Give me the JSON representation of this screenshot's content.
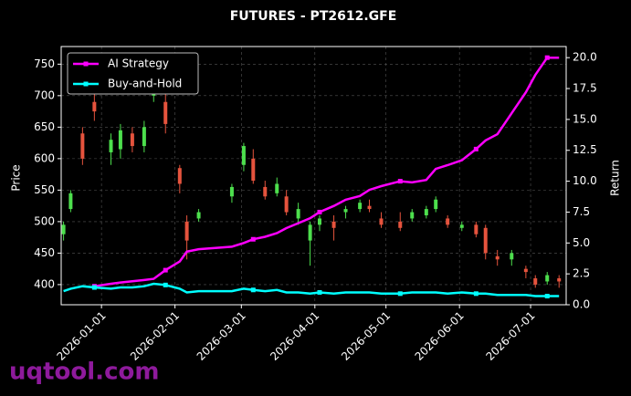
{
  "chart_data": {
    "type": "candlestick",
    "title": "FUTURES - PT2612.GFE",
    "watermark": "uqtool.com",
    "ylabel": "Price",
    "y2label": "Return",
    "x": [
      "2025-12-16",
      "2025-12-19",
      "2025-12-24",
      "2025-12-29",
      "2026-01-05",
      "2026-01-09",
      "2026-01-14",
      "2026-01-19",
      "2026-01-23",
      "2026-01-28",
      "2026-02-03",
      "2026-02-06",
      "2026-02-11",
      "2026-02-25",
      "2026-03-02",
      "2026-03-06",
      "2026-03-11",
      "2026-03-16",
      "2026-03-20",
      "2026-03-25",
      "2026-03-30",
      "2026-04-03",
      "2026-04-09",
      "2026-04-14",
      "2026-04-20",
      "2026-04-24",
      "2026-04-29",
      "2026-05-07",
      "2026-05-12",
      "2026-05-18",
      "2026-05-22",
      "2026-05-27",
      "2026-06-02",
      "2026-06-08",
      "2026-06-12",
      "2026-06-17",
      "2026-06-23",
      "2026-06-29",
      "2026-07-03",
      "2026-07-08",
      "2026-07-13"
    ],
    "open": [
      480,
      520,
      640,
      690,
      610,
      615,
      640,
      620,
      700,
      690,
      585,
      500,
      505,
      540,
      590,
      600,
      555,
      545,
      540,
      505,
      470,
      495,
      500,
      515,
      520,
      525,
      505,
      500,
      505,
      510,
      520,
      505,
      490,
      495,
      490,
      445,
      440,
      425,
      410,
      405,
      410
    ],
    "high": [
      500,
      550,
      650,
      720,
      640,
      655,
      650,
      660,
      745,
      710,
      590,
      510,
      520,
      560,
      625,
      615,
      565,
      570,
      550,
      530,
      500,
      510,
      510,
      525,
      535,
      535,
      515,
      515,
      520,
      525,
      540,
      510,
      500,
      500,
      495,
      455,
      455,
      430,
      415,
      420,
      415
    ],
    "low": [
      470,
      515,
      590,
      660,
      590,
      600,
      610,
      610,
      690,
      640,
      545,
      440,
      500,
      530,
      580,
      560,
      535,
      540,
      510,
      495,
      430,
      485,
      470,
      505,
      515,
      515,
      490,
      485,
      500,
      505,
      515,
      490,
      485,
      475,
      440,
      430,
      430,
      410,
      395,
      400,
      395
    ],
    "close": [
      495,
      545,
      600,
      675,
      630,
      645,
      620,
      650,
      735,
      655,
      560,
      470,
      515,
      555,
      620,
      565,
      540,
      560,
      515,
      520,
      495,
      505,
      490,
      520,
      530,
      520,
      495,
      490,
      515,
      520,
      535,
      495,
      495,
      480,
      450,
      440,
      450,
      420,
      400,
      415,
      405
    ],
    "up_color": "#4ddf4d",
    "down_color": "#e5533d",
    "series": [
      {
        "name": "AI Strategy",
        "color": "#ff00ff",
        "axis": "y2",
        "values": [
          null,
          null,
          null,
          1.5,
          1.7,
          1.8,
          1.9,
          2.0,
          2.1,
          2.8,
          3.5,
          4.3,
          4.5,
          4.7,
          5.0,
          5.3,
          5.5,
          5.8,
          6.2,
          6.6,
          7.0,
          7.5,
          8.0,
          8.5,
          8.8,
          9.3,
          9.6,
          10.0,
          9.9,
          10.1,
          11.0,
          11.3,
          11.7,
          12.6,
          13.3,
          13.8,
          15.5,
          17.2,
          18.6,
          20.0,
          20.0
        ]
      },
      {
        "name": "Buy-and-Hold",
        "color": "#00ffff",
        "axis": "y2",
        "values": [
          1.1,
          1.3,
          1.5,
          1.4,
          1.3,
          1.4,
          1.4,
          1.5,
          1.7,
          1.6,
          1.3,
          1.0,
          1.1,
          1.1,
          1.3,
          1.2,
          1.1,
          1.2,
          1.0,
          1.0,
          0.9,
          1.0,
          0.9,
          1.0,
          1.0,
          1.0,
          0.9,
          0.9,
          1.0,
          1.0,
          1.0,
          0.9,
          1.0,
          0.9,
          0.9,
          0.8,
          0.8,
          0.8,
          0.7,
          0.7,
          0.7
        ]
      }
    ],
    "xlim": [
      "2025-12-15",
      "2026-07-16"
    ],
    "xticks": [
      "2026-01-01",
      "2026-02-01",
      "2026-03-01",
      "2026-04-01",
      "2026-05-01",
      "2026-06-01",
      "2026-07-01"
    ],
    "ylim": [
      368,
      778
    ],
    "yticks": [
      400,
      450,
      500,
      550,
      600,
      650,
      700,
      750
    ],
    "y2lim": [
      0,
      20.9
    ],
    "y2ticks": [
      {
        "value": 0,
        "label": "0.0"
      },
      2.5,
      {
        "value": 5,
        "label": "5.0"
      },
      7.5,
      {
        "value": 10,
        "label": "10.0"
      },
      12.5,
      {
        "value": 15,
        "label": "15.0"
      },
      17.5,
      {
        "value": 20,
        "label": "20.0"
      }
    ],
    "grid": true,
    "legend": "upper left"
  }
}
